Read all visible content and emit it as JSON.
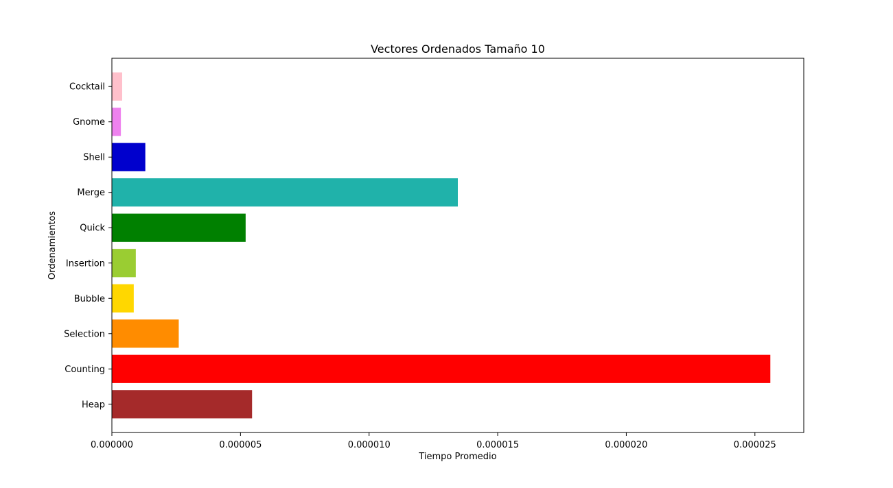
{
  "chart_data": {
    "type": "bar",
    "orientation": "horizontal",
    "title": "Vectores Ordenados Tamaño 10",
    "xlabel": "Tiempo Promedio",
    "ylabel": "Ordenamientos",
    "xlim": [
      0,
      2.69e-05
    ],
    "x_ticks": [
      0,
      5e-06,
      1e-05,
      1.5e-05,
      2e-05,
      2.5e-05
    ],
    "x_tick_labels": [
      "0.000000",
      "0.000005",
      "0.000010",
      "0.000015",
      "0.000020",
      "0.000025"
    ],
    "grid": false,
    "legend": "none",
    "categories": [
      "Heap",
      "Counting",
      "Selection",
      "Bubble",
      "Insertion",
      "Quick",
      "Merge",
      "Shell",
      "Gnome",
      "Cocktail"
    ],
    "values": [
      5.45e-06,
      2.56e-05,
      2.6e-06,
      8.5e-07,
      9.3e-07,
      5.2e-06,
      1.345e-05,
      1.3e-06,
      3.5e-07,
      4e-07
    ],
    "colors": [
      "#a52a2a",
      "#ff0000",
      "#ff8c00",
      "#ffd700",
      "#9acd32",
      "#008000",
      "#20b2aa",
      "#0000cd",
      "#ee82ee",
      "#ffc0cb"
    ]
  }
}
